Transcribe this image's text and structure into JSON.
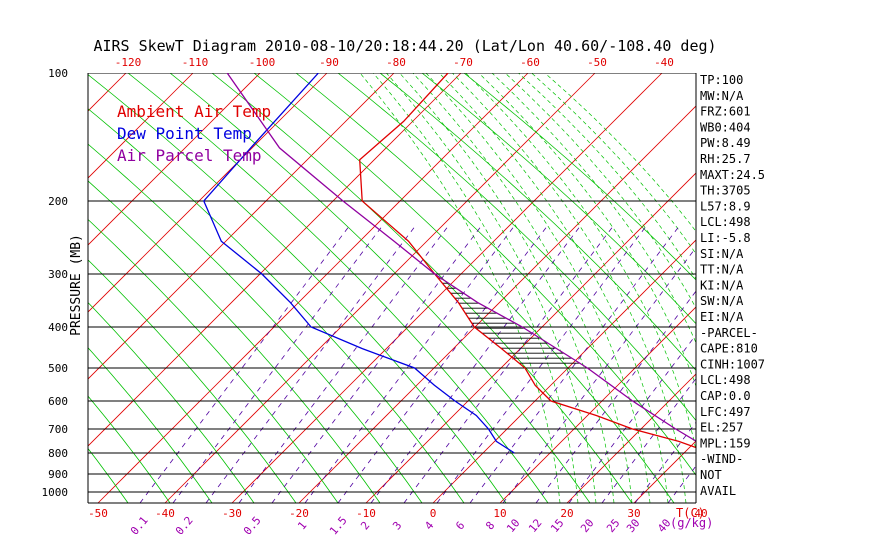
{
  "chart_data": {
    "type": "line",
    "title": "AIRS SkewT Diagram 2010-08-10/20:18:44.20 (Lat/Lon 40.60/-108.40 deg)",
    "ylabel": "PRESSURE (MB)",
    "pressure_ticks": [
      "100",
      "200",
      "300",
      "400",
      "500",
      "600",
      "700",
      "800",
      "900",
      "1000"
    ],
    "top_temp_ticks": [
      "-120",
      "-110",
      "-100",
      "-90",
      "-80",
      "-70",
      "-60",
      "-50",
      "-40"
    ],
    "bottom_temp_ticks": [
      "-50",
      "-40",
      "-30",
      "-20",
      "-10",
      "0",
      "10",
      "20",
      "30",
      "40"
    ],
    "bottom_temp_unit": "T(C)",
    "mixing_ratio_ticks": [
      "0.1",
      "0.2",
      "0.5",
      "1",
      "1.5",
      "2",
      "3",
      "4",
      "6",
      "8",
      "10",
      "12",
      "15",
      "20",
      "25",
      "30",
      "40"
    ],
    "mixing_ratio_unit": "g/kg",
    "legend": [
      {
        "label": "Ambient Air Temp",
        "color": "#e00000"
      },
      {
        "label": "Dew Point Temp",
        "color": "#0000e0"
      },
      {
        "label": "Air Parcel Temp",
        "color": "#9000a0"
      }
    ],
    "grid": true,
    "series": [
      {
        "name": "Ambient Air Temp",
        "color": "#e00000",
        "points": [
          [
            100,
            -57
          ],
          [
            130,
            -61
          ],
          [
            160,
            -66
          ],
          [
            200,
            -61
          ],
          [
            250,
            -47
          ],
          [
            300,
            -38
          ],
          [
            350,
            -30
          ],
          [
            400,
            -24
          ],
          [
            450,
            -16
          ],
          [
            500,
            -9
          ],
          [
            550,
            -5
          ],
          [
            600,
            0
          ],
          [
            650,
            11
          ],
          [
            700,
            20
          ],
          [
            750,
            31
          ],
          [
            800,
            39
          ]
        ]
      },
      {
        "name": "Dew Point Temp",
        "color": "#0000e0",
        "points": [
          [
            100,
            -84
          ],
          [
            150,
            -90
          ],
          [
            200,
            -94
          ],
          [
            250,
            -86
          ],
          [
            300,
            -74
          ],
          [
            350,
            -65
          ],
          [
            400,
            -58
          ],
          [
            450,
            -45
          ],
          [
            500,
            -32
          ],
          [
            550,
            -26
          ],
          [
            600,
            -20
          ],
          [
            650,
            -14
          ],
          [
            700,
            -10
          ],
          [
            750,
            -7
          ],
          [
            800,
            -2
          ]
        ]
      },
      {
        "name": "Air Parcel Temp",
        "color": "#9000a0",
        "points": [
          [
            100,
            -103
          ],
          [
            150,
            -84
          ],
          [
            200,
            -65
          ],
          [
            250,
            -50
          ],
          [
            300,
            -38
          ],
          [
            350,
            -26
          ],
          [
            400,
            -14
          ],
          [
            500,
            4
          ],
          [
            600,
            17
          ],
          [
            700,
            29
          ],
          [
            800,
            40
          ]
        ]
      }
    ]
  },
  "stats": [
    "TP:100",
    "MW:N/A",
    "FRZ:601",
    "WB0:404",
    "PW:8.49",
    "RH:25.7",
    "MAXT:24.5",
    "TH:3705",
    "L57:8.9",
    "LCL:498",
    "LI:-5.8",
    "SI:N/A",
    "TT:N/A",
    "KI:N/A",
    "SW:N/A",
    "EI:N/A",
    "-PARCEL-",
    "CAPE:810",
    "CINH:1007",
    "LCL:498",
    "CAP:0.0",
    "LFC:497",
    "EL:257",
    "MPL:159",
    "-WIND-",
    "NOT",
    "AVAIL"
  ],
  "colors": {
    "isotherm": "#e00000",
    "dry_adiabat": "#00c000",
    "moist_adiabat": "#00c000",
    "mixing_ratio": "#5000a0",
    "text": "#000000",
    "tick_red": "#e00000",
    "tick_purple": "#a000b0"
  }
}
